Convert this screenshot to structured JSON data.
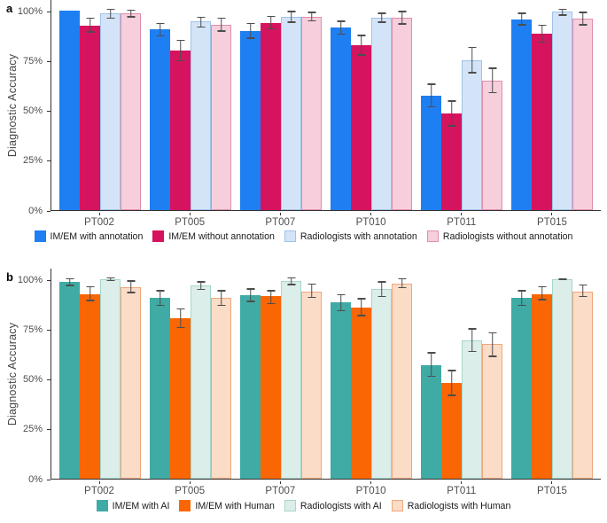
{
  "style": {
    "error_bar_color": "#4D4D4D",
    "axis_color": "#333333",
    "text_color": "#4D4D4D"
  },
  "chart_data": [
    {
      "panel_label": "a",
      "type": "bar",
      "ylabel": "Diagnostic Accuracy",
      "ylim": [
        0,
        105.8
      ],
      "grid": false,
      "legend_position": "bottom",
      "yticks": [
        {
          "label": "0%",
          "value": 0
        },
        {
          "label": "25%",
          "value": 25
        },
        {
          "label": "50%",
          "value": 50
        },
        {
          "label": "75%",
          "value": 75
        },
        {
          "label": "100%",
          "value": 100
        }
      ],
      "categories": [
        "PT002",
        "PT005",
        "PT007",
        "PT010",
        "PT011",
        "PT015"
      ],
      "series": [
        {
          "name": "IM/EM with annotation",
          "fill": "#1E7FF2",
          "border": "#1E7FF2",
          "values": [
            100,
            90.5,
            90,
            91.5,
            57.5,
            95.5
          ],
          "err_low": [
            null,
            87,
            86,
            88,
            51.5,
            92.5
          ],
          "err_high": [
            null,
            94,
            94,
            95,
            63.5,
            99
          ]
        },
        {
          "name": "IM/EM without annotation",
          "fill": "#D6135E",
          "border": "#D6135E",
          "values": [
            92.5,
            80,
            94,
            82.5,
            48.5,
            88.5
          ],
          "err_low": [
            89,
            74.5,
            90.5,
            77.5,
            42,
            84
          ],
          "err_high": [
            96.5,
            85.5,
            97.5,
            88,
            55,
            93
          ]
        },
        {
          "name": "Radiologists with annotation",
          "fill": "#D4E4F8",
          "border": "#9FC2E8",
          "values": [
            98.5,
            94.5,
            97,
            96.5,
            75,
            99.5
          ],
          "err_low": [
            96,
            91.5,
            94,
            94,
            68.5,
            97.5
          ],
          "err_high": [
            101,
            97,
            100,
            99,
            82,
            101
          ]
        },
        {
          "name": "Radiologists without annotation",
          "fill": "#F6CEDC",
          "border": "#DE8FAC",
          "values": [
            98.5,
            93,
            97,
            96.5,
            65,
            96
          ],
          "err_low": [
            96.5,
            89.5,
            94.5,
            93,
            58.5,
            92.5
          ],
          "err_high": [
            100.5,
            96.5,
            99.5,
            100,
            71.5,
            99.5
          ]
        }
      ]
    },
    {
      "panel_label": "b",
      "type": "bar",
      "ylabel": "Diagnostic Accuracy",
      "ylim": [
        0,
        105.8
      ],
      "grid": false,
      "legend_position": "bottom",
      "yticks": [
        {
          "label": "0%",
          "value": 0
        },
        {
          "label": "25%",
          "value": 25
        },
        {
          "label": "50%",
          "value": 50
        },
        {
          "label": "75%",
          "value": 75
        },
        {
          "label": "100%",
          "value": 100
        }
      ],
      "categories": [
        "PT002",
        "PT005",
        "PT007",
        "PT010",
        "PT011",
        "PT015"
      ],
      "series": [
        {
          "name": "IM/EM with AI",
          "fill": "#3FABA4",
          "border": "#3FABA4",
          "values": [
            98.5,
            90.5,
            92,
            88.5,
            57,
            90.5
          ],
          "err_low": [
            96.5,
            86.5,
            88.5,
            84,
            51,
            86.5
          ],
          "err_high": [
            100.5,
            94.5,
            95.5,
            92.5,
            63.5,
            94.5
          ]
        },
        {
          "name": "IM/EM with Human",
          "fill": "#FA6604",
          "border": "#FA6604",
          "values": [
            92.5,
            80.5,
            91.5,
            86,
            48,
            92.5
          ],
          "err_low": [
            89,
            75.5,
            87.5,
            81.5,
            41.5,
            89.5
          ],
          "err_high": [
            96.5,
            85.5,
            94.5,
            90.5,
            54.5,
            96.5
          ]
        },
        {
          "name": "Radiologists with AI",
          "fill": "#DCEEE9",
          "border": "#A5D5CB",
          "values": [
            100,
            97,
            99,
            95,
            69.5,
            100
          ],
          "err_low": [
            99,
            94.5,
            97,
            91,
            63.5,
            99.5
          ],
          "err_high": [
            101,
            99,
            101,
            99,
            75.5,
            100.5
          ]
        },
        {
          "name": "Radiologists with Human",
          "fill": "#FBDCC6",
          "border": "#EFA77D",
          "values": [
            96,
            90.5,
            94,
            98,
            67.5,
            94
          ],
          "err_low": [
            93,
            86.5,
            90.5,
            95.5,
            61,
            91
          ],
          "err_high": [
            99.5,
            94.5,
            98,
            100.5,
            73.5,
            97.5
          ]
        }
      ]
    }
  ]
}
